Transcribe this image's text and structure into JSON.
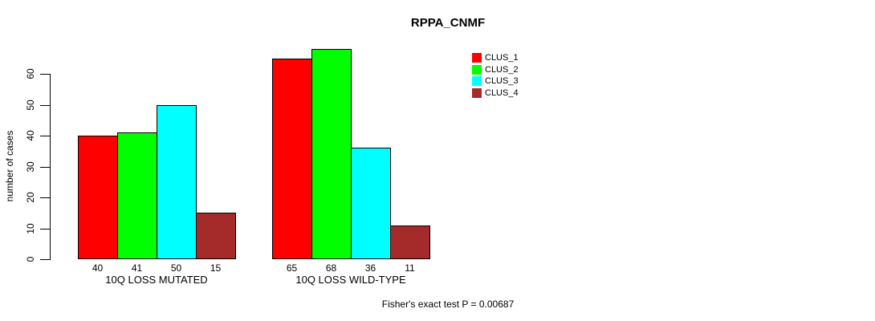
{
  "chart_data": {
    "type": "bar",
    "title": "RPPA_CNMF",
    "xlabel": "",
    "ylabel": "number of cases",
    "categories": [
      "10Q LOSS MUTATED",
      "10Q LOSS WILD-TYPE"
    ],
    "series": [
      {
        "name": "CLUS_1",
        "color": "#ff0000",
        "values": [
          40,
          65
        ]
      },
      {
        "name": "CLUS_2",
        "color": "#00ff00",
        "values": [
          41,
          68
        ]
      },
      {
        "name": "CLUS_3",
        "color": "#00ffff",
        "values": [
          50,
          36
        ]
      },
      {
        "name": "CLUS_4",
        "color": "#a52a2a",
        "values": [
          15,
          11
        ]
      }
    ],
    "ylim": [
      0,
      60
    ],
    "y_ticks": [
      0,
      10,
      20,
      30,
      40,
      50,
      60
    ],
    "grid": false,
    "legend_position": "top-right",
    "bar_value_labels_shown": true,
    "annotation": "Fisher's exact test P = 0.00687"
  }
}
